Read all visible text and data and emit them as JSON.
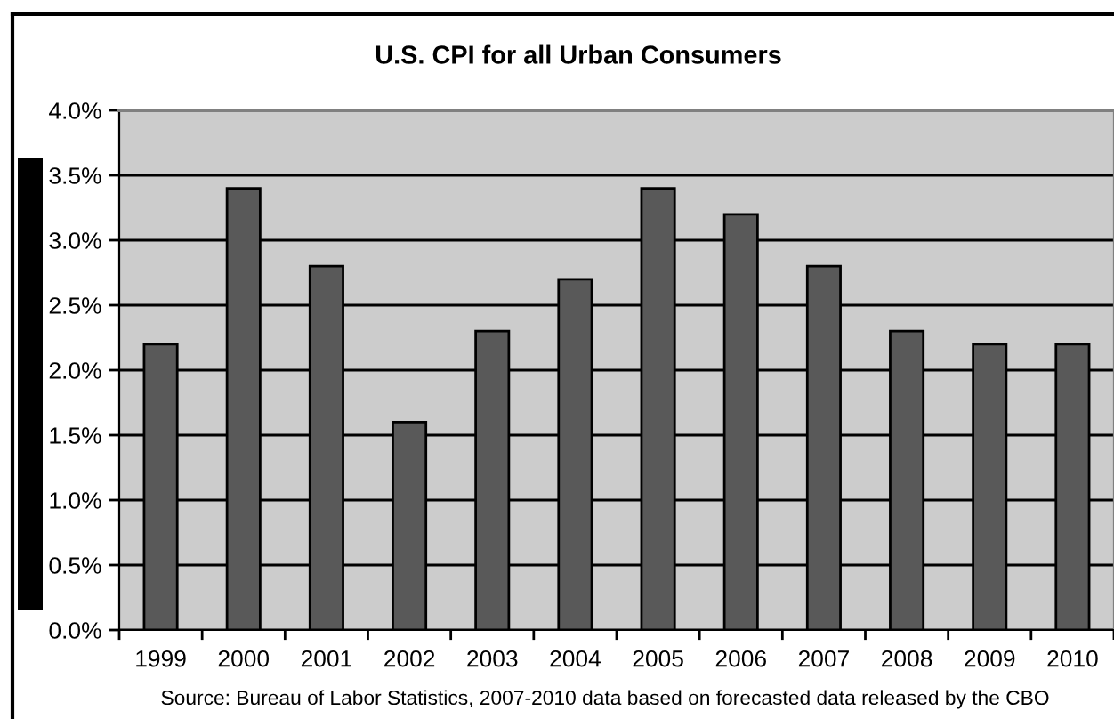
{
  "chart_data": {
    "type": "bar",
    "title": "U.S. CPI for all Urban Consumers",
    "categories": [
      "1999",
      "2000",
      "2001",
      "2002",
      "2003",
      "2004",
      "2005",
      "2006",
      "2007",
      "2008",
      "2009",
      "2010"
    ],
    "values": [
      2.2,
      3.4,
      2.8,
      1.6,
      2.3,
      2.7,
      3.4,
      3.2,
      2.8,
      2.3,
      2.2,
      2.2
    ],
    "color": "#595959",
    "ylim": [
      0,
      4
    ],
    "yticks": [
      {
        "value": 0,
        "label": "0.0%"
      },
      {
        "value": 0.5,
        "label": "0.5%"
      },
      {
        "value": 1,
        "label": "1.0%"
      },
      {
        "value": 1.5,
        "label": "1.5%"
      },
      {
        "value": 2,
        "label": "2.0%"
      },
      {
        "value": 2.5,
        "label": "2.5%"
      },
      {
        "value": 3,
        "label": "3.0%"
      },
      {
        "value": 3.5,
        "label": "3.5%"
      },
      {
        "value": 4,
        "label": "4.0%"
      }
    ],
    "grid": "y",
    "annotations": [
      "Source: Bureau of Labor Statistics, 2007-2010 data based on forecasted data released by the CBO"
    ]
  }
}
